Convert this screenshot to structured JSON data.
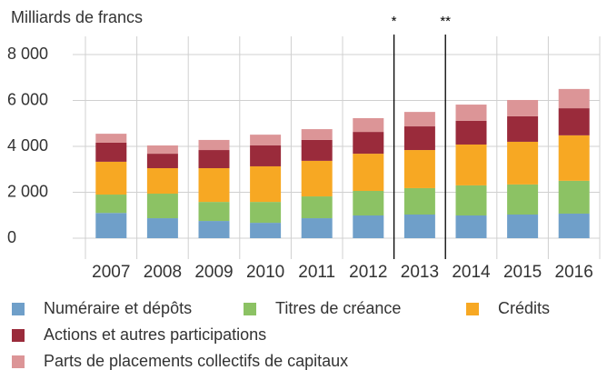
{
  "chart_data": {
    "type": "stacked_bar",
    "y_label": "Milliards de francs",
    "categories": [
      "2007",
      "2008",
      "2009",
      "2010",
      "2011",
      "2012",
      "2013",
      "2014",
      "2015",
      "2016"
    ],
    "series": [
      {
        "name": "Numéraire et dépôts",
        "color": "#6f9fc9",
        "values": [
          1100,
          870,
          750,
          670,
          870,
          990,
          1030,
          990,
          1030,
          1070
        ]
      },
      {
        "name": "Titres de créance",
        "color": "#8cc264",
        "values": [
          800,
          1070,
          830,
          910,
          950,
          1070,
          1150,
          1310,
          1310,
          1430
        ]
      },
      {
        "name": "Crédits",
        "color": "#f7a823",
        "values": [
          1430,
          1110,
          1470,
          1550,
          1550,
          1620,
          1660,
          1780,
          1860,
          1980
        ]
      },
      {
        "name": "Actions et autres participations",
        "color": "#9a2b3b",
        "values": [
          830,
          630,
          790,
          910,
          910,
          950,
          1030,
          1030,
          1110,
          1180
        ]
      },
      {
        "name": "Parts de placements collectifs de capitaux",
        "color": "#dc9597",
        "values": [
          390,
          360,
          440,
          470,
          470,
          600,
          630,
          710,
          710,
          840
        ]
      }
    ],
    "annotations": [
      "*",
      "**"
    ],
    "ylim": [
      0,
      8000
    ],
    "yticks": [
      0,
      {
        "value": 2000,
        "label": "2 000"
      },
      {
        "value": 4000,
        "label": "4 000"
      },
      {
        "value": 6000,
        "label": "6 000"
      },
      {
        "value": 8000,
        "label": "8 000"
      }
    ],
    "grid": true
  }
}
